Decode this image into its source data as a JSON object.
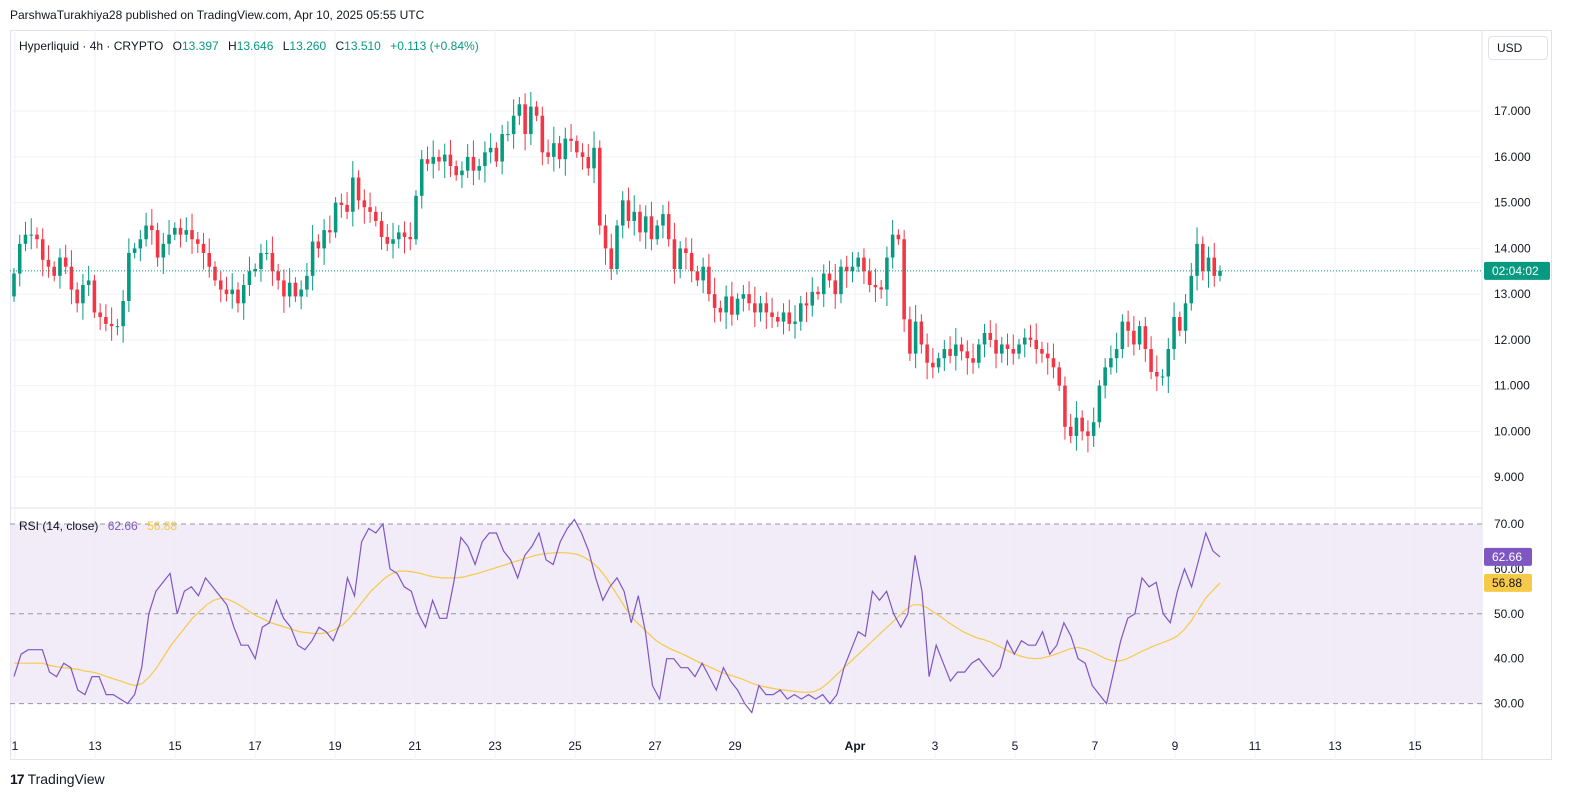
{
  "header": {
    "published_text": "ParshwaTurakhiya28 published on TradingView.com, Apr 10, 2025 05:55 UTC"
  },
  "legend": {
    "symbol": "Hyperliquid · 4h · CRYPTO",
    "o_label": "O",
    "o_value": "13.397",
    "h_label": "H",
    "h_value": "13.646",
    "l_label": "L",
    "l_value": "13.260",
    "c_label": "C",
    "c_value": "13.510",
    "change": "+0.113 (+0.84%)"
  },
  "currency_button": "USD",
  "rsi_legend": {
    "label": "RSI (14, close)",
    "rsi_value": "62.66",
    "ma_value": "56.88"
  },
  "price_marker": "02:04:02",
  "footer": {
    "logo": "17",
    "brand": "TradingView"
  },
  "colors": {
    "up": "#089981",
    "down": "#f23645",
    "rsi": "#7e57c2",
    "rsi_ma": "#f7c948",
    "rsi_band": "#ede7f6"
  },
  "chart_data": [
    {
      "type": "candlestick",
      "title": "Hyperliquid · 4h · CRYPTO",
      "ylim": [
        8.5,
        17.9
      ],
      "price_ticks": [
        "17.000",
        "16.000",
        "15.000",
        "14.000",
        "13.000",
        "12.000",
        "11.000",
        "10.000",
        "9.000"
      ],
      "price_tick_values": [
        17,
        16,
        15,
        14,
        13,
        12,
        11,
        10,
        9
      ],
      "x_ticks": [
        "1",
        "13",
        "15",
        "17",
        "19",
        "21",
        "23",
        "25",
        "27",
        "29",
        "Apr",
        "3",
        "5",
        "7",
        "9",
        "11",
        "13",
        "15"
      ],
      "x_tick_bold": [
        false,
        false,
        false,
        false,
        false,
        false,
        false,
        false,
        false,
        false,
        true,
        false,
        false,
        false,
        false,
        false,
        false,
        false
      ],
      "x_tick_days": [
        11,
        13,
        15,
        17,
        19,
        21,
        23,
        25,
        27,
        29,
        32,
        34,
        36,
        38,
        40,
        42,
        44,
        46
      ],
      "current_price": 13.51,
      "close": [
        13.45,
        14.1,
        14.3,
        14.3,
        14.2,
        13.75,
        13.6,
        13.4,
        13.8,
        13.6,
        13.1,
        12.8,
        13.2,
        13.3,
        12.6,
        12.5,
        12.35,
        12.3,
        12.3,
        12.85,
        13.9,
        14.0,
        14.2,
        14.5,
        14.4,
        13.8,
        14.1,
        14.3,
        14.45,
        14.3,
        14.4,
        14.2,
        14.1,
        13.9,
        13.6,
        13.3,
        13.1,
        13.0,
        13.1,
        12.8,
        13.2,
        13.5,
        13.55,
        13.9,
        13.9,
        13.5,
        13.3,
        12.95,
        13.25,
        12.95,
        13.1,
        13.4,
        14.15,
        14.0,
        14.4,
        14.35,
        15.0,
        14.95,
        14.8,
        15.55,
        15.05,
        14.9,
        14.8,
        14.6,
        14.25,
        14.1,
        14.2,
        14.35,
        14.25,
        14.2,
        15.15,
        15.95,
        15.85,
        16.0,
        15.9,
        16.05,
        15.8,
        15.6,
        15.7,
        16.0,
        15.7,
        15.8,
        16.1,
        16.2,
        15.9,
        16.5,
        16.5,
        16.9,
        17.15,
        16.5,
        17.1,
        16.9,
        16.1,
        16.0,
        16.3,
        15.95,
        16.4,
        16.35,
        16.1,
        16.0,
        15.75,
        16.2,
        14.5,
        14.0,
        13.55,
        14.5,
        15.05,
        14.6,
        14.8,
        14.35,
        14.7,
        14.2,
        14.5,
        14.75,
        14.2,
        13.55,
        14.0,
        13.9,
        13.5,
        13.3,
        13.6,
        13.0,
        12.7,
        12.6,
        12.95,
        12.55,
        12.9,
        13.0,
        12.8,
        12.6,
        12.8,
        12.6,
        12.5,
        12.4,
        12.6,
        12.35,
        12.4,
        12.8,
        12.75,
        13.05,
        13.0,
        13.45,
        13.3,
        13.0,
        13.6,
        13.5,
        13.6,
        13.8,
        13.5,
        13.2,
        13.15,
        13.1,
        13.8,
        14.3,
        14.2,
        12.45,
        11.7,
        12.4,
        11.9,
        11.5,
        11.4,
        11.6,
        11.8,
        11.65,
        11.9,
        11.75,
        11.6,
        11.5,
        11.9,
        12.15,
        12.0,
        11.7,
        11.9,
        11.8,
        11.7,
        11.9,
        12.05,
        12.0,
        11.8,
        11.7,
        11.6,
        11.4,
        11.0,
        10.1,
        9.9,
        10.3,
        10.0,
        9.9,
        10.2,
        11.0,
        11.4,
        11.6,
        11.8,
        12.4,
        12.2,
        11.9,
        12.3,
        11.8,
        11.3,
        11.2,
        11.2,
        11.8,
        12.5,
        12.2,
        12.8,
        13.4,
        14.1,
        13.5,
        13.8,
        13.4,
        13.51
      ],
      "open": [
        12.95,
        13.45,
        14.1,
        14.3,
        14.3,
        14.2,
        13.75,
        13.6,
        13.4,
        13.8,
        13.6,
        13.1,
        12.8,
        13.2,
        13.3,
        12.6,
        12.5,
        12.35,
        12.3,
        12.3,
        12.85,
        13.9,
        14.0,
        14.2,
        14.5,
        14.4,
        13.8,
        14.1,
        14.3,
        14.45,
        14.3,
        14.4,
        14.2,
        14.1,
        13.9,
        13.6,
        13.3,
        13.1,
        13.0,
        13.1,
        12.8,
        13.2,
        13.5,
        13.55,
        13.9,
        13.9,
        13.5,
        13.3,
        12.95,
        13.25,
        12.95,
        13.1,
        13.4,
        14.15,
        14.0,
        14.4,
        14.35,
        15.0,
        14.95,
        14.8,
        15.55,
        15.05,
        14.9,
        14.8,
        14.6,
        14.25,
        14.1,
        14.2,
        14.35,
        14.25,
        14.2,
        15.15,
        15.95,
        15.85,
        16.0,
        15.9,
        16.05,
        15.8,
        15.6,
        15.7,
        16.0,
        15.7,
        15.8,
        16.1,
        16.2,
        15.9,
        16.5,
        16.5,
        16.9,
        17.15,
        16.5,
        17.1,
        16.9,
        16.1,
        16.0,
        16.3,
        15.95,
        16.4,
        16.35,
        16.1,
        16.0,
        15.75,
        16.2,
        14.5,
        14.0,
        13.55,
        14.5,
        15.05,
        14.6,
        14.8,
        14.35,
        14.7,
        14.2,
        14.5,
        14.75,
        14.2,
        13.55,
        14.0,
        13.9,
        13.5,
        13.3,
        13.6,
        13.0,
        12.7,
        12.6,
        12.95,
        12.55,
        12.9,
        13.0,
        12.8,
        12.6,
        12.8,
        12.6,
        12.5,
        12.4,
        12.6,
        12.35,
        12.4,
        12.8,
        12.75,
        13.05,
        13.0,
        13.45,
        13.3,
        13.0,
        13.6,
        13.5,
        13.6,
        13.8,
        13.5,
        13.2,
        13.15,
        13.1,
        13.8,
        14.3,
        14.2,
        12.45,
        11.7,
        12.4,
        11.9,
        11.5,
        11.4,
        11.6,
        11.8,
        11.65,
        11.9,
        11.75,
        11.6,
        11.5,
        11.9,
        12.15,
        12.0,
        11.7,
        11.9,
        11.8,
        11.7,
        11.9,
        12.05,
        12.0,
        11.8,
        11.7,
        11.6,
        11.4,
        11.0,
        10.1,
        9.9,
        10.3,
        10.0,
        9.9,
        10.2,
        11.0,
        11.4,
        11.6,
        11.8,
        12.4,
        12.2,
        11.9,
        12.3,
        11.8,
        11.3,
        11.2,
        11.2,
        11.8,
        12.5,
        12.2,
        12.8,
        13.4,
        14.1,
        13.5,
        13.8,
        13.4
      ]
    },
    {
      "type": "line",
      "title": "RSI (14, close)",
      "ylim": [
        23,
        72
      ],
      "y_ticks": [
        "70.00",
        "60.00",
        "50.00",
        "40.00",
        "30.00"
      ],
      "y_tick_values": [
        70,
        60,
        50,
        40,
        30
      ],
      "band": [
        30,
        70
      ],
      "mid_line": 50,
      "series": [
        {
          "name": "RSI",
          "values": [
            36,
            41,
            42,
            42,
            42,
            37,
            36,
            39,
            38,
            33,
            32,
            36,
            36,
            32,
            32,
            31,
            30,
            32,
            38,
            50,
            55,
            57,
            59,
            50,
            55,
            56,
            54,
            58,
            56,
            54,
            52,
            47,
            43,
            43,
            40,
            47,
            48,
            53,
            49,
            47,
            43,
            42,
            44,
            47,
            46,
            44,
            48,
            58,
            54,
            66,
            69,
            68,
            70,
            60,
            59,
            56,
            55,
            50,
            47,
            53,
            49,
            49,
            57,
            67,
            65,
            61,
            66,
            68,
            68,
            64,
            62,
            58,
            63,
            65,
            68,
            62,
            61,
            66,
            69,
            71,
            68,
            64,
            58,
            53,
            56,
            58,
            55,
            48,
            54,
            46,
            34,
            31,
            40,
            40,
            38,
            38,
            36,
            39,
            36,
            33,
            38,
            35,
            33,
            30,
            28,
            34,
            32,
            32,
            33,
            31,
            32,
            31,
            32,
            31,
            32,
            30,
            32,
            38,
            42,
            46,
            45,
            55,
            53,
            55,
            50,
            47,
            50,
            63,
            55,
            36,
            43,
            39,
            35,
            37,
            37,
            39,
            40,
            38,
            36,
            38,
            44,
            41,
            44,
            43,
            43,
            46,
            41,
            43,
            48,
            45,
            40,
            39,
            34,
            32,
            30,
            37,
            44,
            49,
            50,
            58,
            56,
            57,
            50,
            48,
            55,
            60,
            56,
            62,
            68,
            64,
            62.66
          ]
        },
        {
          "name": "MA",
          "values": [
            39,
            39,
            39,
            39,
            39,
            38.5,
            38.2,
            38,
            37.8,
            37.6,
            37.2,
            37,
            36.6,
            36,
            35.5,
            35,
            34.4,
            34,
            34.5,
            36,
            38,
            40.5,
            43,
            45,
            47,
            49,
            50.5,
            52,
            53,
            53.5,
            53.2,
            52.5,
            51.5,
            50.5,
            49.5,
            48.8,
            48,
            47.5,
            47,
            46.5,
            46,
            45.8,
            45.6,
            45.6,
            45.8,
            46.5,
            47.5,
            49,
            51,
            53,
            55,
            56.5,
            58,
            59,
            59.5,
            59.5,
            59.3,
            59,
            58.5,
            58.2,
            58,
            58,
            58,
            58.2,
            58.6,
            59,
            59.5,
            60,
            60.5,
            61,
            61.5,
            62,
            62.5,
            63,
            63.3,
            63.5,
            63.6,
            63.6,
            63.5,
            63.2,
            62.5,
            61.5,
            60,
            58,
            55.5,
            53,
            50.5,
            48.5,
            47,
            45.5,
            44,
            43,
            42.2,
            41.5,
            40.8,
            40,
            39.2,
            38.5,
            37.8,
            37,
            36.5,
            36,
            35.5,
            34.8,
            34.2,
            33.8,
            33.5,
            33.2,
            33,
            32.8,
            32.6,
            32.5,
            32.6,
            33.3,
            34.5,
            36,
            37.5,
            39,
            40.5,
            42,
            43.5,
            45,
            46.5,
            48,
            49.5,
            51,
            52,
            52,
            51.3,
            50.2,
            49.2,
            48,
            47,
            46,
            45.3,
            44.6,
            44.2,
            43.6,
            42.8,
            42,
            41.2,
            40.6,
            40.2,
            40,
            40.1,
            40.5,
            41,
            41.6,
            42.2,
            42.5,
            42.2,
            41.6,
            40.8,
            40,
            39.5,
            39.5,
            40,
            40.8,
            41.6,
            42.3,
            43,
            43.6,
            44.2,
            45,
            46.5,
            48.5,
            51,
            53.5,
            55.2,
            56.88
          ]
        }
      ]
    }
  ]
}
